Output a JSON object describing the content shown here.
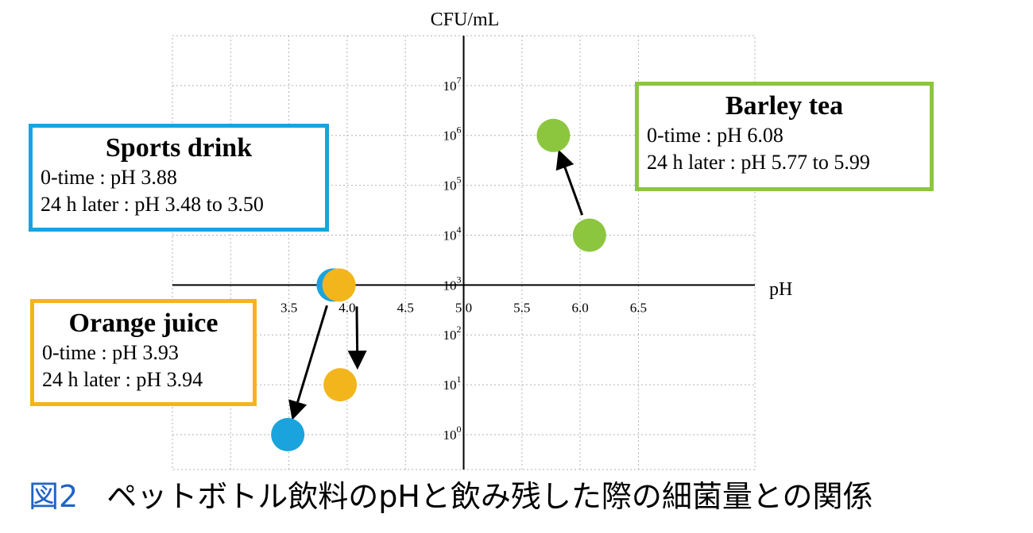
{
  "chart_data": {
    "type": "scatter",
    "xlabel": "pH",
    "ylabel": "CFU/mL",
    "x_ticks": [
      "3.5",
      "4.0",
      "4.5",
      "5.0",
      "5.5",
      "6.0",
      "6.5"
    ],
    "y_ticks": [
      {
        "base": "10",
        "exp": "0"
      },
      {
        "base": "10",
        "exp": "1"
      },
      {
        "base": "10",
        "exp": "2"
      },
      {
        "base": "10",
        "exp": "3"
      },
      {
        "base": "10",
        "exp": "4"
      },
      {
        "base": "10",
        "exp": "5"
      },
      {
        "base": "10",
        "exp": "6"
      },
      {
        "base": "10",
        "exp": "7"
      }
    ],
    "x_range": [
      2.5,
      7.5
    ],
    "y_log_range": [
      -0.7,
      8.0
    ],
    "y_scale": "log",
    "grid": true,
    "series": [
      {
        "color": "#1aa3dc",
        "points": [
          {
            "x": 3.88,
            "y": 1000,
            "stage": "0-time"
          },
          {
            "x": 3.49,
            "y": 1,
            "stage": "24 h later"
          }
        ]
      },
      {
        "color": "#f3b51c",
        "points": [
          {
            "x": 3.93,
            "y": 1000,
            "stage": "0-time"
          },
          {
            "x": 3.94,
            "y": 10,
            "stage": "24 h later"
          }
        ]
      },
      {
        "color": "#8cc63f",
        "points": [
          {
            "x": 6.08,
            "y": 10000,
            "stage": "0-time"
          },
          {
            "x": 5.77,
            "y": 1000000,
            "stage": "24 h later"
          }
        ]
      }
    ]
  },
  "annotations": {
    "sports": {
      "title": "Sports drink",
      "line1": "0-time : pH 3.88",
      "line2": "24 h later : pH 3.48 to 3.50",
      "color": "#1aa3dc"
    },
    "barley": {
      "title": "Barley tea",
      "line1": "0-time : pH 6.08",
      "line2": "24 h later : pH 5.77 to 5.99",
      "color": "#8cc63f"
    },
    "orange": {
      "title": "Orange juice",
      "line1": "0-time : pH 3.93",
      "line2": "24 h later : pH 3.94",
      "color": "#f3b51c"
    }
  },
  "caption": {
    "number": "図2",
    "text": "ペットボトル飲料のpHと飲み残した際の細菌量との関係",
    "number_color": "#1f64c8"
  }
}
